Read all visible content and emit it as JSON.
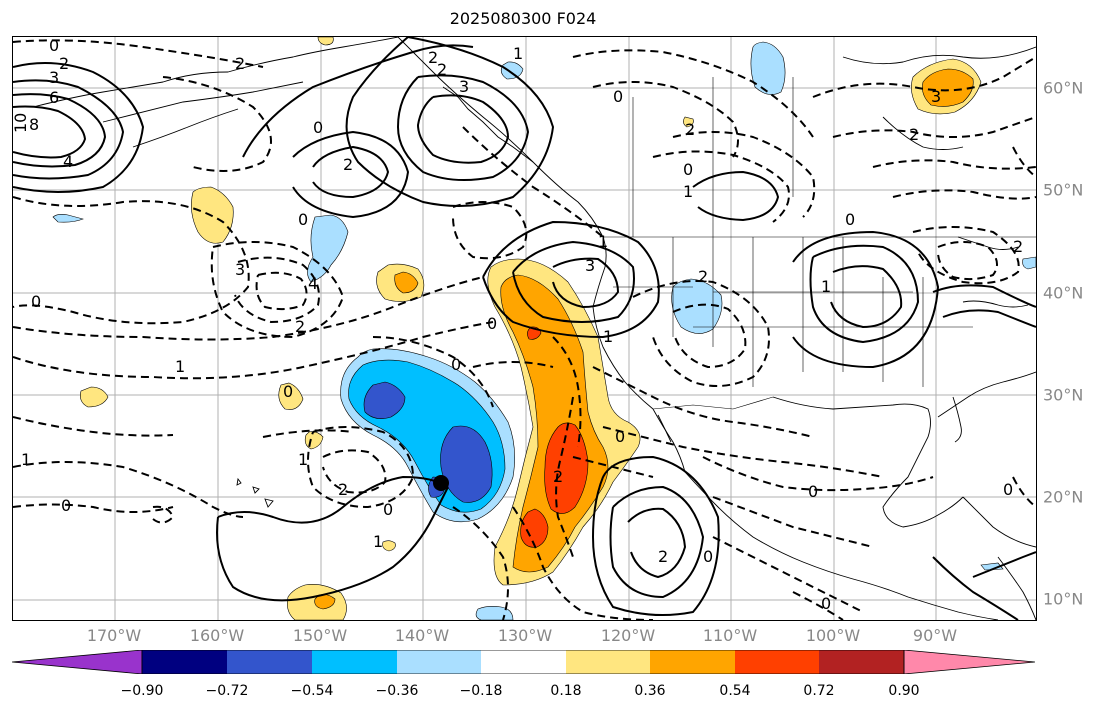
{
  "title": "2025080300 F024",
  "longitude_labels": [
    "170°W",
    "160°W",
    "150°W",
    "140°W",
    "130°W",
    "120°W",
    "110°W",
    "100°W",
    "90°W"
  ],
  "latitude_labels": [
    "60°N",
    "50°N",
    "40°N",
    "30°N",
    "20°N",
    "10°N"
  ],
  "contour_labels": {
    "ne_pacific_low": "0",
    "ne_pacific_2": "2",
    "ne_pacific_3": "3",
    "ne_pacific_6": "6",
    "ne_pacific_8": "8",
    "ne_pacific_10": "10",
    "ne_pacific_4": "4",
    "gulf_alaska_2a": "2",
    "gulf_alaska_2b": "2",
    "gulf_alaska_3": "3",
    "gulf_alaska_0": "0",
    "bc_high_2": "2",
    "central_pac_low_4": "4",
    "central_pac_low_3": "3",
    "central_pac_2": "2",
    "central_pac_0": "0",
    "west_0": "0",
    "west_1": "1",
    "subtrop_2": "2",
    "subtrop_0": "0",
    "subtrop_1": "1",
    "hawaii_0": "0",
    "cal_high_3": "3",
    "cal_high_1": "1",
    "cal_0": "0",
    "rockies_0": "0",
    "plains_1": "1",
    "plains_0": "0",
    "canada_0": "0",
    "canada_2": "2",
    "canada_1": "1",
    "hudson_3": "3",
    "hudson_2": "2",
    "great_lakes_2": "2",
    "baja_2": "2",
    "baja_0": "0",
    "mexico_0": "0",
    "east_pac_2": "2",
    "east_pac_1": "1",
    "east_pac_0": "0",
    "gulf_0": "0",
    "caribbean_0": "0",
    "trop_1": "1",
    "trop_0": "0",
    "alaska_1": "1",
    "alaska_2": "2",
    "mexico_2": "2"
  },
  "colorbar": {
    "colors": [
      "#9933cc",
      "#000080",
      "#3355cc",
      "#00bfff",
      "#aadfff",
      "#ffffff",
      "#ffe680",
      "#ffa500",
      "#ff4000",
      "#b22222",
      "#ff88aa"
    ],
    "ticks": [
      "−0.90",
      "−0.72",
      "−0.54",
      "−0.36",
      "−0.18",
      "0.18",
      "0.36",
      "0.54",
      "0.72",
      "0.90"
    ]
  }
}
